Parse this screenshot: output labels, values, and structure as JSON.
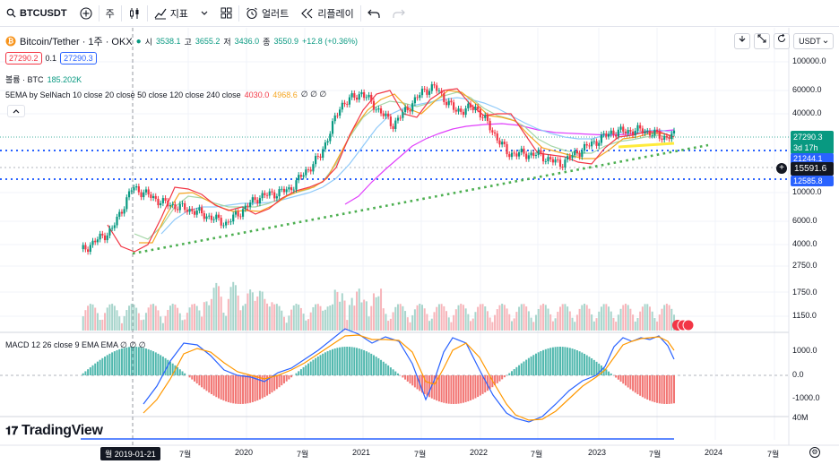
{
  "toolbar": {
    "symbol": "BTCUSDT",
    "interval": "주",
    "indicators_label": "지표",
    "alert_label": "얼러트",
    "replay_label": "리플레이"
  },
  "legend": {
    "title": "Bitcoin/Tether · 1주 · OKX",
    "open_label": "시",
    "open": "3538.1",
    "high_label": "고",
    "high": "3655.2",
    "low_label": "저",
    "low": "3436.0",
    "close_label": "종",
    "close": "3550.9",
    "change": "+12.8 (+0.36%)",
    "bid": "27290.2",
    "spread": "0.1",
    "ask": "27290.3",
    "volume_label": "볼륨 · BTC",
    "volume": "185.202K",
    "ema_label": "5EMA by SelNach 10 close 20 close 50 close 120 close 240 close",
    "ema_val1": "4030.0",
    "ema_val2": "4968.6",
    "ema_rest": "∅ ∅ ∅",
    "macd_label": "MACD 12 26 close 9 EMA EMA ∅ ∅ ∅",
    "pair_short": "BTC"
  },
  "currency": "USDT",
  "price_axis": [
    "100000.0",
    "60000.0",
    "40000.0",
    "10000.0",
    "6000.0",
    "4000.0",
    "2750.0",
    "1750.0",
    "1150.0"
  ],
  "macd_axis": [
    "1000.0",
    "0.0",
    "-1000.0"
  ],
  "volume_axis_label": "40M",
  "price_tags": {
    "current": "27290.3",
    "countdown": "3d 17h",
    "level1": "21244.1",
    "level2": "15591.6",
    "level3": "12585.8"
  },
  "time_axis": {
    "selected_date": "월 2019-01-21",
    "ticks": [
      "7월",
      "2020",
      "7월",
      "2021",
      "7월",
      "2022",
      "7월",
      "2023",
      "7월",
      "2024",
      "7월"
    ]
  },
  "brand": "TradingView",
  "colors": {
    "up": "#089981",
    "down": "#f23645",
    "ema10": "#f23645",
    "ema20": "#f5a623",
    "ema50": "#a5d6a7",
    "ema120": "#90caf9",
    "ema240": "#e040fb",
    "level_line": "#2962ff",
    "trend_line": "#4caf50"
  },
  "chart_data": {
    "type": "candlestick",
    "title": "Bitcoin/Tether · 1주 · OKX",
    "scale": "log",
    "x_range": [
      "2019-01-21",
      "2023-10"
    ],
    "close_series": {
      "x": [
        "2019-01",
        "2019-04",
        "2019-06",
        "2019-09",
        "2019-12",
        "2020-03",
        "2020-06",
        "2020-09",
        "2020-12",
        "2021-02",
        "2021-04",
        "2021-07",
        "2021-10",
        "2021-11",
        "2022-01",
        "2022-03",
        "2022-06",
        "2022-09",
        "2022-11",
        "2023-01",
        "2023-04",
        "2023-07",
        "2023-09",
        "2023-10"
      ],
      "y": [
        3550,
        5200,
        11000,
        8300,
        7200,
        5800,
        9200,
        10500,
        19000,
        47000,
        58000,
        33000,
        61000,
        64000,
        42000,
        45000,
        20000,
        19500,
        16500,
        21000,
        29000,
        30000,
        26500,
        27290
      ]
    },
    "horizontal_levels": [
      21244.1,
      15591.6,
      12585.8
    ],
    "trendline": {
      "start": [
        "2019-02",
        3500
      ],
      "end": [
        "2023-11",
        26000
      ]
    },
    "volume_axis_max": "40M",
    "macd_range": [
      -1500,
      1500
    ]
  }
}
